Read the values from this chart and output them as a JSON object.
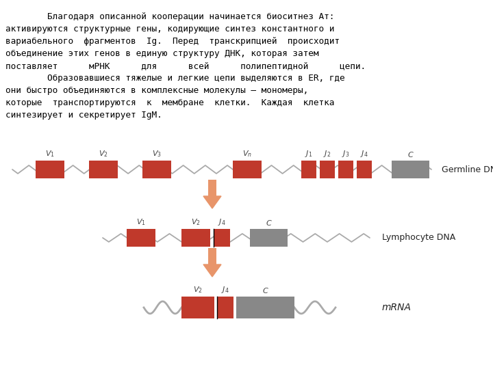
{
  "bg_color": "#ffffff",
  "text_color": "#000000",
  "red_color": "#c0392b",
  "gray_color": "#888888",
  "arrow_color": "#e8956a",
  "label_color": "#444444",
  "dna_color": "#aaaaaa",
  "germline_label": "Germline DNA",
  "lymphocyte_label": "Lymphocyte DNA",
  "mrna_label": "mRNA",
  "text_lines": [
    "        Благодаря описанной кооперации начинается биоситнез Ат:",
    "активируются структурные гены, кодирующие синтез константного и",
    "вариабельного  фрагментов  Ig.  Перед  транскрипцией  происходит",
    "объединение этих генов в единую структуру ДНК, которая затем",
    "поставляет      мРНК      для      всей      полипептидной      цепи.",
    "        Образовавшиеся тяжелые и легкие цепи выделяются в ER, где",
    "они быстро объединяются в комплексные молекулы – мономеры,",
    "которые  транспортируются  к  мембране  клетки.  Каждая  клетка",
    "синтезирует и секретирует IgM."
  ]
}
